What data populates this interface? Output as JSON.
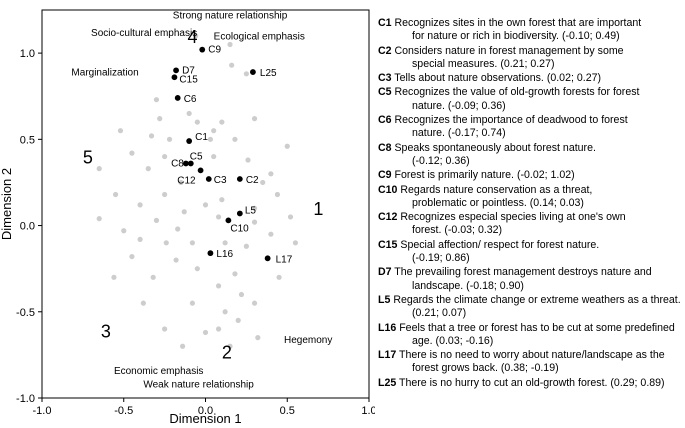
{
  "chart_data": {
    "type": "scatter",
    "title": "",
    "xlabel": "Dimension 1",
    "ylabel": "Dimension 2",
    "xlim": [
      -1.0,
      1.0
    ],
    "ylim": [
      -1.0,
      1.25
    ],
    "xticks": [
      "-1.0",
      "-0.5",
      "0.0",
      "0.5",
      "1.0"
    ],
    "yticks": [
      "-1.0",
      "-0.5",
      "0.0",
      "0.5",
      "1.0"
    ],
    "grid": false,
    "labeled_points": [
      {
        "label": "C1",
        "x": -0.1,
        "y": 0.49
      },
      {
        "label": "C2",
        "x": 0.21,
        "y": 0.27
      },
      {
        "label": "C3",
        "x": 0.02,
        "y": 0.27
      },
      {
        "label": "C5",
        "x": -0.09,
        "y": 0.36
      },
      {
        "label": "C6",
        "x": -0.17,
        "y": 0.74
      },
      {
        "label": "C8",
        "x": -0.12,
        "y": 0.36
      },
      {
        "label": "C9",
        "x": -0.02,
        "y": 1.02
      },
      {
        "label": "C10",
        "x": 0.14,
        "y": 0.03
      },
      {
        "label": "C12",
        "x": -0.03,
        "y": 0.32
      },
      {
        "label": "C15",
        "x": -0.19,
        "y": 0.86
      },
      {
        "label": "D7",
        "x": -0.18,
        "y": 0.9
      },
      {
        "label": "L5",
        "x": 0.21,
        "y": 0.07
      },
      {
        "label": "L16",
        "x": 0.03,
        "y": -0.16
      },
      {
        "label": "L17",
        "x": 0.38,
        "y": -0.19
      },
      {
        "label": "L25",
        "x": 0.29,
        "y": 0.89
      }
    ],
    "other_points": [
      [
        -0.06,
        1.1
      ],
      [
        0.15,
        1.05
      ],
      [
        0.16,
        0.93
      ],
      [
        0.25,
        0.88
      ],
      [
        -0.52,
        0.55
      ],
      [
        -0.28,
        0.62
      ],
      [
        -0.3,
        0.73
      ],
      [
        -0.1,
        0.65
      ],
      [
        -0.05,
        0.6
      ],
      [
        0.1,
        0.6
      ],
      [
        0.3,
        0.62
      ],
      [
        0.05,
        0.55
      ],
      [
        -0.33,
        0.52
      ],
      [
        -0.22,
        0.5
      ],
      [
        0.18,
        0.5
      ],
      [
        0.5,
        0.46
      ],
      [
        -0.45,
        0.42
      ],
      [
        -0.25,
        0.4
      ],
      [
        0.05,
        0.4
      ],
      [
        0.26,
        0.38
      ],
      [
        0.4,
        0.3
      ],
      [
        -0.65,
        0.33
      ],
      [
        -0.35,
        0.33
      ],
      [
        -0.15,
        0.25
      ],
      [
        0.35,
        0.25
      ],
      [
        -0.55,
        0.18
      ],
      [
        -0.25,
        0.18
      ],
      [
        0.1,
        0.15
      ],
      [
        0.44,
        0.18
      ],
      [
        -0.4,
        0.12
      ],
      [
        0.0,
        0.12
      ],
      [
        0.3,
        0.1
      ],
      [
        -0.13,
        0.08
      ],
      [
        0.08,
        0.05
      ],
      [
        -0.65,
        0.04
      ],
      [
        -0.3,
        0.03
      ],
      [
        0.3,
        0.02
      ],
      [
        0.52,
        0.05
      ],
      [
        -0.5,
        -0.03
      ],
      [
        -0.17,
        -0.02
      ],
      [
        0.4,
        -0.05
      ],
      [
        -0.4,
        -0.08
      ],
      [
        -0.24,
        -0.1
      ],
      [
        0.12,
        -0.1
      ],
      [
        0.25,
        -0.12
      ],
      [
        -0.45,
        -0.18
      ],
      [
        -0.18,
        -0.2
      ],
      [
        -0.05,
        -0.25
      ],
      [
        0.18,
        -0.28
      ],
      [
        -0.56,
        -0.3
      ],
      [
        -0.32,
        -0.3
      ],
      [
        0.08,
        -0.35
      ],
      [
        0.22,
        -0.4
      ],
      [
        -0.08,
        -0.45
      ],
      [
        0.12,
        -0.5
      ],
      [
        -0.25,
        -0.6
      ],
      [
        0.0,
        -0.62
      ],
      [
        0.2,
        -0.55
      ],
      [
        0.15,
        -0.7
      ],
      [
        -0.14,
        -0.7
      ],
      [
        0.08,
        -0.6
      ],
      [
        0.3,
        -0.45
      ],
      [
        0.45,
        -0.3
      ],
      [
        0.55,
        -0.1
      ],
      [
        -0.08,
        -0.1
      ],
      [
        0.03,
        0.5
      ],
      [
        -0.38,
        -0.45
      ],
      [
        0.32,
        -0.65
      ]
    ],
    "colors": {
      "labeled": "#000000",
      "other": "#cdcdcd"
    },
    "annotations": [
      {
        "text": "Strong nature relationship",
        "x": -0.2,
        "y": 1.2
      },
      {
        "text": "Socio-cultural emphasis",
        "x": -0.7,
        "y": 1.1
      },
      {
        "text": "Ecological emphasis",
        "x": 0.05,
        "y": 1.08
      },
      {
        "text": "Marginalization",
        "x": -0.82,
        "y": 0.87
      },
      {
        "text": "Hegemony",
        "x": 0.48,
        "y": -0.68
      },
      {
        "text": "Economic emphasis",
        "x": -0.56,
        "y": -0.86
      },
      {
        "text": "Weak nature relationship",
        "x": -0.38,
        "y": -0.94
      }
    ],
    "region_numbers": [
      {
        "text": "1",
        "x": 0.66,
        "y": 0.06
      },
      {
        "text": "2",
        "x": 0.1,
        "y": -0.77
      },
      {
        "text": "3",
        "x": -0.64,
        "y": -0.65
      },
      {
        "text": "4",
        "x": -0.11,
        "y": 1.06
      },
      {
        "text": "5",
        "x": -0.75,
        "y": 0.36
      }
    ],
    "legend_placement": "right",
    "legend": [
      {
        "code": "C1",
        "lines": [
          "Recognizes sites in the own forest that are important",
          "for nature or rich in biodiversity.  (-0.10; 0.49)"
        ]
      },
      {
        "code": "C2",
        "lines": [
          "Considers nature in forest management by some",
          "special measures.  (0.21; 0.27)"
        ]
      },
      {
        "code": "C3",
        "lines": [
          "Tells about nature observations.  (0.02; 0.27)"
        ]
      },
      {
        "code": "C5",
        "lines": [
          "Recognizes the value of old-growth forests for forest",
          "nature.  (-0.09; 0.36)"
        ]
      },
      {
        "code": "C6",
        "lines": [
          "Recognizes the importance of deadwood to forest",
          "nature.  (-0.17; 0.74)"
        ]
      },
      {
        "code": "C8",
        "lines": [
          "Speaks spontaneously about forest nature.",
          "(-0.12; 0.36)"
        ]
      },
      {
        "code": "C9",
        "lines": [
          "Forest is primarily nature.  (-0.02; 1.02)"
        ]
      },
      {
        "code": "C10",
        "lines": [
          "Regards nature conservation as a threat,",
          "problematic or pointless.  (0.14; 0.03)"
        ]
      },
      {
        "code": "C12",
        "lines": [
          "Recognizes especial species living at one's own",
          "forest.  (-0.03; 0.32)"
        ]
      },
      {
        "code": "C15",
        "lines": [
          "Special affection/ respect for forest nature.",
          "(-0.19; 0.86)"
        ]
      },
      {
        "code": "D7",
        "lines": [
          "The prevailing forest management destroys nature and",
          "landscape.  (-0.18; 0.90)"
        ]
      },
      {
        "code": "L5",
        "lines": [
          "Regards the climate change or extreme weathers as a threat.",
          "(0.21; 0.07)"
        ]
      },
      {
        "code": "L16",
        "lines": [
          "Feels that a tree or forest has to be cut at some predefined",
          "age.  (0.03; -0.16)"
        ]
      },
      {
        "code": "L17",
        "lines": [
          "There is no need to worry about nature/landscape as the",
          "forest grows back.  (0.38; -0.19)"
        ]
      },
      {
        "code": "L25",
        "lines": [
          "There is no hurry to cut an old-growth forest.  (0.29; 0.89)"
        ]
      }
    ]
  }
}
